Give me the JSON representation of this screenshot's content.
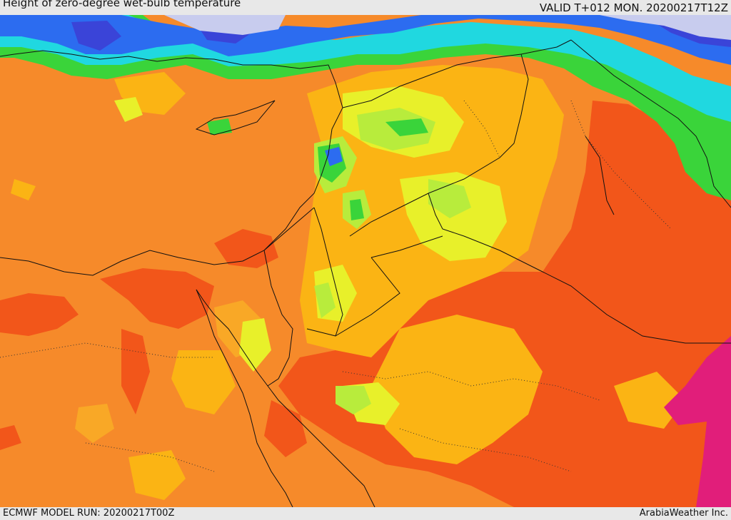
{
  "header": {
    "title": "Height of zero-degree wet-bulb temperature",
    "valid": "VALID T+012 MON. 20200217T12Z"
  },
  "footer": {
    "model_run": "ECMWF MODEL RUN: 20200217T00Z",
    "credit": "ArabiaWeather Inc."
  },
  "colors": {
    "base_orange": "#f68a2a",
    "amber": "#fbb414",
    "light_orange": "#f9a826",
    "yellow": "#e8f02a",
    "light_green": "#b8ec3c",
    "green": "#3ad43a",
    "cyan": "#20d8e0",
    "blue": "#2c6cf0",
    "dark_blue": "#3a44d8",
    "lavender": "#c8ccee",
    "red_orange": "#f2561a",
    "magenta": "#e11e7a",
    "border_line": "#111111"
  }
}
